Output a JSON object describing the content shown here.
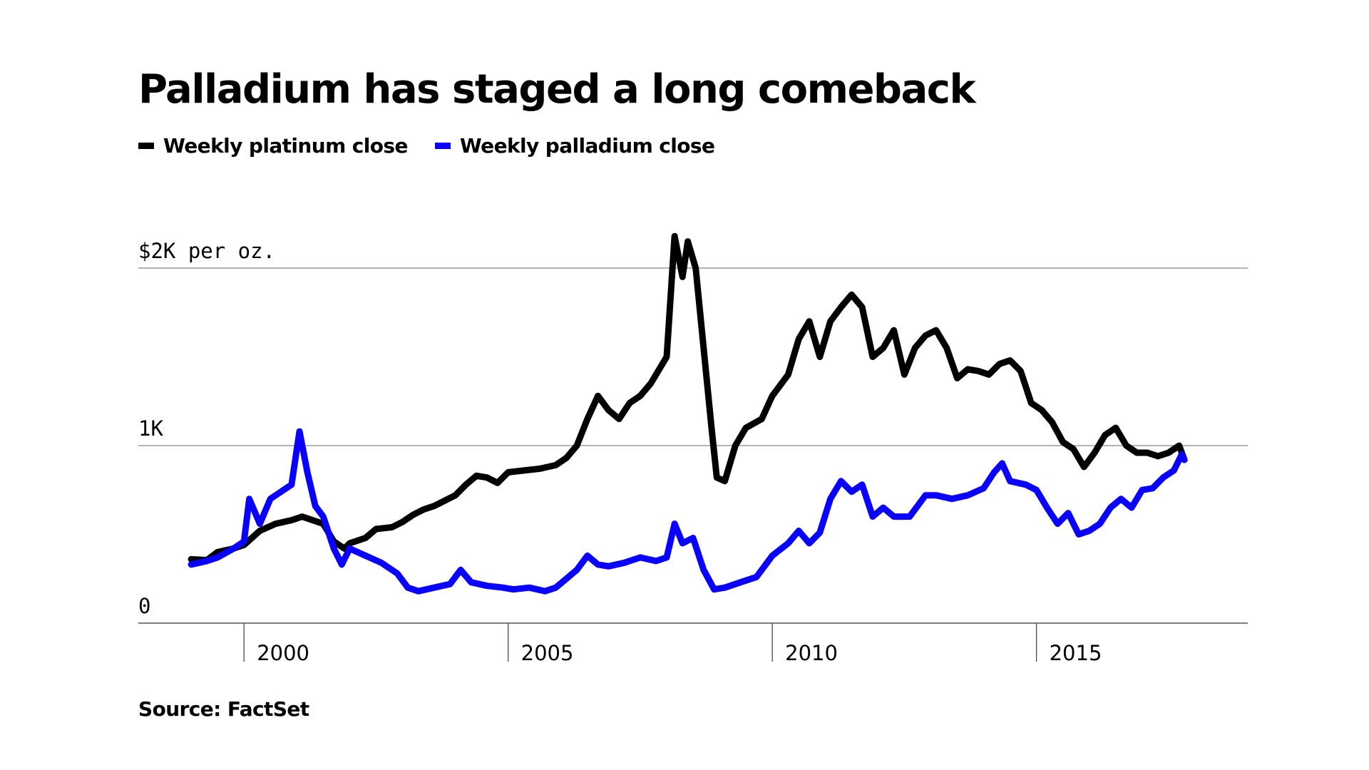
{
  "chart_data": {
    "type": "line",
    "title": "Palladium has staged a long comeback",
    "source": "Source: FactSet",
    "y_axis": {
      "range": [
        0,
        2000
      ],
      "ticks": [
        {
          "value": 0,
          "label": "0"
        },
        {
          "value": 1000,
          "label": "1K"
        },
        {
          "value": 2000,
          "label": "$2K per oz."
        }
      ]
    },
    "x_axis": {
      "range": [
        1998,
        2019
      ],
      "ticks": [
        {
          "value": 2000,
          "label": "2000"
        },
        {
          "value": 2005,
          "label": "2005"
        },
        {
          "value": 2010,
          "label": "2010"
        },
        {
          "value": 2015,
          "label": "2015"
        }
      ]
    },
    "legend_position": "top-left",
    "grid": "horizontal",
    "series": [
      {
        "name": "Weekly platinum close",
        "color": "#000000",
        "points": [
          [
            1999.0,
            360
          ],
          [
            1999.3,
            355
          ],
          [
            1999.5,
            400
          ],
          [
            1999.8,
            420
          ],
          [
            2000.0,
            440
          ],
          [
            2000.3,
            520
          ],
          [
            2000.6,
            560
          ],
          [
            2000.9,
            580
          ],
          [
            2001.1,
            600
          ],
          [
            2001.3,
            580
          ],
          [
            2001.5,
            560
          ],
          [
            2001.7,
            460
          ],
          [
            2001.9,
            420
          ],
          [
            2002.0,
            450
          ],
          [
            2002.3,
            480
          ],
          [
            2002.5,
            530
          ],
          [
            2002.8,
            540
          ],
          [
            2003.0,
            570
          ],
          [
            2003.2,
            610
          ],
          [
            2003.4,
            640
          ],
          [
            2003.6,
            660
          ],
          [
            2003.8,
            690
          ],
          [
            2004.0,
            720
          ],
          [
            2004.2,
            780
          ],
          [
            2004.4,
            830
          ],
          [
            2004.6,
            820
          ],
          [
            2004.8,
            790
          ],
          [
            2005.0,
            850
          ],
          [
            2005.3,
            860
          ],
          [
            2005.6,
            870
          ],
          [
            2005.9,
            890
          ],
          [
            2006.1,
            930
          ],
          [
            2006.3,
            1000
          ],
          [
            2006.5,
            1150
          ],
          [
            2006.7,
            1280
          ],
          [
            2006.9,
            1200
          ],
          [
            2007.1,
            1150
          ],
          [
            2007.3,
            1240
          ],
          [
            2007.5,
            1280
          ],
          [
            2007.7,
            1350
          ],
          [
            2007.9,
            1450
          ],
          [
            2008.0,
            1500
          ],
          [
            2008.15,
            2180
          ],
          [
            2008.3,
            1950
          ],
          [
            2008.4,
            2150
          ],
          [
            2008.55,
            2000
          ],
          [
            2008.7,
            1550
          ],
          [
            2008.85,
            1100
          ],
          [
            2008.95,
            820
          ],
          [
            2009.1,
            800
          ],
          [
            2009.3,
            1000
          ],
          [
            2009.5,
            1100
          ],
          [
            2009.8,
            1150
          ],
          [
            2010.0,
            1280
          ],
          [
            2010.3,
            1400
          ],
          [
            2010.5,
            1600
          ],
          [
            2010.7,
            1700
          ],
          [
            2010.9,
            1500
          ],
          [
            2011.1,
            1700
          ],
          [
            2011.3,
            1780
          ],
          [
            2011.5,
            1850
          ],
          [
            2011.7,
            1780
          ],
          [
            2011.9,
            1500
          ],
          [
            2012.1,
            1550
          ],
          [
            2012.3,
            1650
          ],
          [
            2012.5,
            1400
          ],
          [
            2012.7,
            1550
          ],
          [
            2012.9,
            1620
          ],
          [
            2013.1,
            1650
          ],
          [
            2013.3,
            1550
          ],
          [
            2013.5,
            1380
          ],
          [
            2013.7,
            1430
          ],
          [
            2013.9,
            1420
          ],
          [
            2014.1,
            1400
          ],
          [
            2014.3,
            1460
          ],
          [
            2014.5,
            1480
          ],
          [
            2014.7,
            1420
          ],
          [
            2014.9,
            1240
          ],
          [
            2015.1,
            1200
          ],
          [
            2015.3,
            1130
          ],
          [
            2015.5,
            1020
          ],
          [
            2015.7,
            980
          ],
          [
            2015.9,
            880
          ],
          [
            2016.1,
            960
          ],
          [
            2016.3,
            1060
          ],
          [
            2016.5,
            1100
          ],
          [
            2016.7,
            1000
          ],
          [
            2016.9,
            960
          ],
          [
            2017.1,
            960
          ],
          [
            2017.3,
            940
          ],
          [
            2017.5,
            960
          ],
          [
            2017.7,
            1000
          ],
          [
            2017.8,
            920
          ]
        ]
      },
      {
        "name": "Weekly palladium close",
        "color": "#0a00ff",
        "points": [
          [
            1999.0,
            330
          ],
          [
            1999.3,
            350
          ],
          [
            1999.5,
            370
          ],
          [
            1999.8,
            420
          ],
          [
            2000.0,
            460
          ],
          [
            2000.1,
            700
          ],
          [
            2000.3,
            560
          ],
          [
            2000.5,
            700
          ],
          [
            2000.7,
            740
          ],
          [
            2000.9,
            780
          ],
          [
            2001.05,
            1080
          ],
          [
            2001.2,
            850
          ],
          [
            2001.35,
            660
          ],
          [
            2001.5,
            600
          ],
          [
            2001.7,
            420
          ],
          [
            2001.85,
            330
          ],
          [
            2002.0,
            420
          ],
          [
            2002.3,
            380
          ],
          [
            2002.6,
            340
          ],
          [
            2002.9,
            280
          ],
          [
            2003.1,
            200
          ],
          [
            2003.3,
            180
          ],
          [
            2003.6,
            200
          ],
          [
            2003.9,
            220
          ],
          [
            2004.1,
            300
          ],
          [
            2004.3,
            230
          ],
          [
            2004.6,
            210
          ],
          [
            2004.9,
            200
          ],
          [
            2005.1,
            190
          ],
          [
            2005.4,
            200
          ],
          [
            2005.7,
            180
          ],
          [
            2005.9,
            200
          ],
          [
            2006.1,
            250
          ],
          [
            2006.3,
            300
          ],
          [
            2006.5,
            380
          ],
          [
            2006.7,
            330
          ],
          [
            2006.9,
            320
          ],
          [
            2007.2,
            340
          ],
          [
            2007.5,
            370
          ],
          [
            2007.8,
            350
          ],
          [
            2008.0,
            370
          ],
          [
            2008.15,
            560
          ],
          [
            2008.3,
            450
          ],
          [
            2008.5,
            480
          ],
          [
            2008.7,
            300
          ],
          [
            2008.9,
            190
          ],
          [
            2009.1,
            200
          ],
          [
            2009.4,
            230
          ],
          [
            2009.7,
            260
          ],
          [
            2010.0,
            380
          ],
          [
            2010.3,
            450
          ],
          [
            2010.5,
            520
          ],
          [
            2010.7,
            450
          ],
          [
            2010.9,
            510
          ],
          [
            2011.1,
            700
          ],
          [
            2011.3,
            800
          ],
          [
            2011.5,
            740
          ],
          [
            2011.7,
            780
          ],
          [
            2011.9,
            600
          ],
          [
            2012.1,
            650
          ],
          [
            2012.3,
            600
          ],
          [
            2012.6,
            600
          ],
          [
            2012.9,
            720
          ],
          [
            2013.1,
            720
          ],
          [
            2013.4,
            700
          ],
          [
            2013.7,
            720
          ],
          [
            2014.0,
            760
          ],
          [
            2014.2,
            850
          ],
          [
            2014.35,
            900
          ],
          [
            2014.5,
            800
          ],
          [
            2014.8,
            780
          ],
          [
            2015.0,
            750
          ],
          [
            2015.2,
            650
          ],
          [
            2015.4,
            560
          ],
          [
            2015.6,
            620
          ],
          [
            2015.8,
            500
          ],
          [
            2016.0,
            520
          ],
          [
            2016.2,
            560
          ],
          [
            2016.4,
            650
          ],
          [
            2016.6,
            700
          ],
          [
            2016.8,
            650
          ],
          [
            2017.0,
            750
          ],
          [
            2017.2,
            760
          ],
          [
            2017.4,
            820
          ],
          [
            2017.6,
            860
          ],
          [
            2017.75,
            950
          ],
          [
            2017.8,
            920
          ]
        ]
      }
    ]
  }
}
